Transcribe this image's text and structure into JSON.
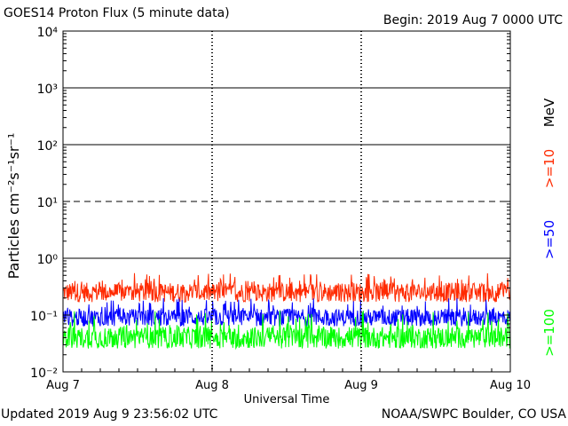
{
  "header": {
    "title": "GOES14 Proton Flux (5 minute data)",
    "begin": "Begin: 2019 Aug 7 0000 UTC"
  },
  "footer": {
    "updated": "Updated 2019 Aug  9 23:56:02 UTC",
    "credit": "NOAA/SWPC Boulder, CO USA"
  },
  "chart_data": {
    "type": "line",
    "title": "GOES14 Proton Flux (5 minute data)",
    "xlabel": "Universal Time",
    "ylabel": "Particles cm⁻²s⁻¹sr⁻¹",
    "yscale": "log",
    "ylim": [
      0.01,
      10000
    ],
    "xlim": [
      "2019-08-07 00:00",
      "2019-08-10 00:00"
    ],
    "x_ticks": [
      "Aug 7",
      "Aug 8",
      "Aug 9",
      "Aug 10"
    ],
    "y_ticks": [
      "10⁻²",
      "10⁻¹",
      "10⁰",
      "10¹",
      "10²",
      "10³",
      "10⁴"
    ],
    "y_tick_values": [
      0.01,
      0.1,
      1,
      10,
      100,
      1000,
      10000
    ],
    "reference_lines": [
      {
        "value": 1,
        "style": "solid"
      },
      {
        "value": 10,
        "style": "dashed"
      },
      {
        "value": 100,
        "style": "solid"
      },
      {
        "value": 1000,
        "style": "solid"
      }
    ],
    "unit_label": "MeV",
    "series": [
      {
        "name": ">=10",
        "color": "#ff2a00",
        "typical": 0.25,
        "range": [
          0.13,
          0.55
        ]
      },
      {
        "name": ">=50",
        "color": "#0000ff",
        "typical": 0.09,
        "range": [
          0.055,
          0.2
        ]
      },
      {
        "name": ">=100",
        "color": "#00ff00",
        "typical": 0.04,
        "range": [
          0.024,
          0.12
        ]
      }
    ]
  }
}
